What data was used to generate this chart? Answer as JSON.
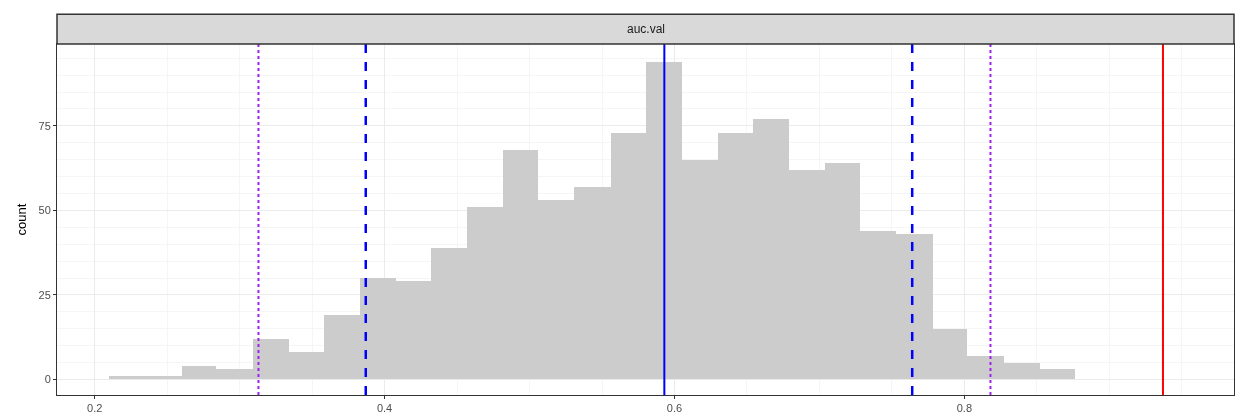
{
  "chart_data": {
    "type": "histogram",
    "title": "auc.val",
    "ylabel": "count",
    "bins": [
      0.21,
      0.235,
      0.26,
      0.284,
      0.309,
      0.334,
      0.358,
      0.383,
      0.408,
      0.432,
      0.457,
      0.482,
      0.506,
      0.531,
      0.556,
      0.58,
      0.605,
      0.63,
      0.654,
      0.679,
      0.704,
      0.728,
      0.753,
      0.778,
      0.802,
      0.827,
      0.852,
      0.876
    ],
    "values": [
      1,
      1,
      4,
      3,
      12,
      8,
      19,
      30,
      29,
      39,
      51,
      68,
      53,
      57,
      73,
      94,
      65,
      73,
      77,
      62,
      64,
      44,
      43,
      15,
      7,
      5,
      3
    ],
    "color": "#cccccc",
    "xlim": [
      0.174,
      0.986
    ],
    "xticks": [
      0.2,
      0.4,
      0.6,
      0.8
    ],
    "ylim": [
      -4.6,
      99.2
    ],
    "yticks": [
      0,
      25,
      50,
      75
    ],
    "grid": true,
    "ref_lines": [
      {
        "axis": "x",
        "value": 0.313,
        "color": "#a020f0",
        "line_style": "dotted"
      },
      {
        "axis": "x",
        "value": 0.387,
        "color": "#0000ff",
        "line_style": "dashed"
      },
      {
        "axis": "x",
        "value": 0.593,
        "color": "#0000ff",
        "line_style": "solid"
      },
      {
        "axis": "x",
        "value": 0.764,
        "color": "#0000ff",
        "line_style": "dashed"
      },
      {
        "axis": "x",
        "value": 0.818,
        "color": "#a020f0",
        "line_style": "dotted"
      },
      {
        "axis": "x",
        "value": 0.937,
        "color": "#ff0000",
        "line_style": "solid"
      }
    ]
  }
}
